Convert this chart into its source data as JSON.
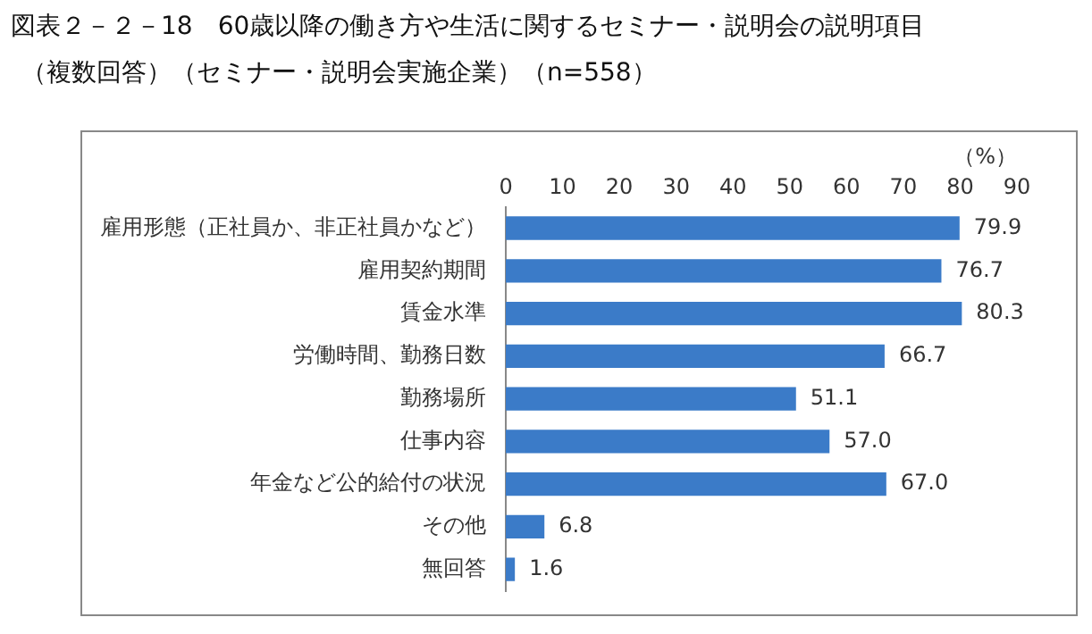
{
  "chart_data": {
    "type": "bar",
    "orientation": "horizontal",
    "title": "図表２－２－18　60歳以降の働き方や生活に関するセミナー・説明会の説明項目",
    "subtitle": "（複数回答）（セミナー・説明会実施企業）（n=558）",
    "xlabel": "（%）",
    "categories": [
      "雇用形態（正社員か、非正社員かなど）",
      "雇用契約期間",
      "賃金水準",
      "労働時間、勤務日数",
      "勤務場所",
      "仕事内容",
      "年金など公的給付の状況",
      "その他",
      "無回答"
    ],
    "values": [
      79.9,
      76.7,
      80.3,
      66.7,
      51.1,
      57.0,
      67.0,
      6.8,
      1.6
    ],
    "value_labels": [
      "79.9",
      "76.7",
      "80.3",
      "66.7",
      "51.1",
      "57.0",
      "67.0",
      "6.8",
      "1.6"
    ],
    "color": "#3b7bc8",
    "xlim": [
      0,
      90
    ],
    "xticks": [
      0,
      10,
      20,
      30,
      40,
      50,
      60,
      70,
      80,
      90
    ],
    "grid": false,
    "legend": false
  }
}
